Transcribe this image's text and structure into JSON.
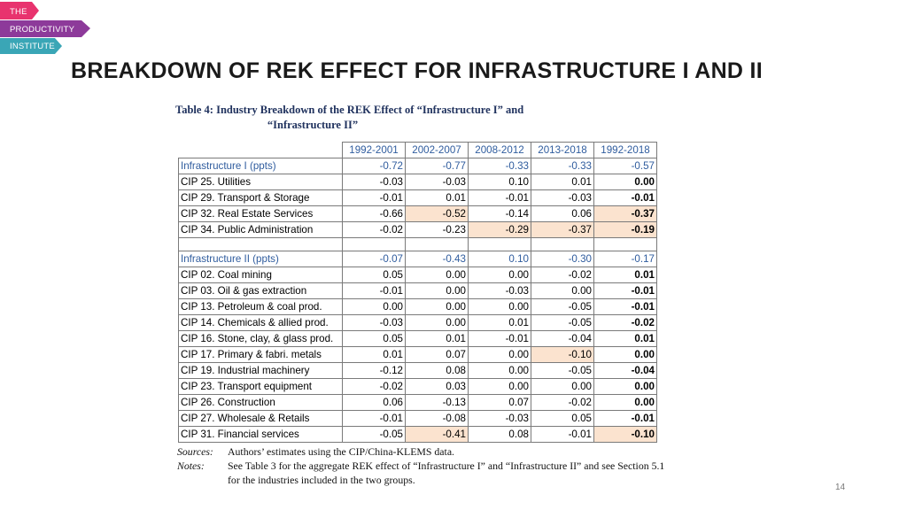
{
  "logo": {
    "line1": "THE",
    "line2": "PRODUCTIVITY",
    "line3": "INSTITUTE",
    "colors": [
      "#e8336e",
      "#8d3a9a",
      "#3aa6b6"
    ]
  },
  "slide_title": "BREAKDOWN OF REK EFFECT FOR INFRASTRUCTURE I AND II",
  "table": {
    "caption_line1": "Table 4: Industry Breakdown of the REK Effect of “Infrastructure I” and",
    "caption_line2": "“Infrastructure II”",
    "columns": [
      "1992-2001",
      "2002-2007",
      "2008-2012",
      "2013-2018",
      "1992-2018"
    ],
    "highlight_color": "#fbe3cf",
    "rows": [
      {
        "label": "Infrastructure I (ppts)",
        "values": [
          "-0.72",
          "-0.77",
          "-0.33",
          "-0.33",
          "-0.57"
        ],
        "kind": "header",
        "hl": []
      },
      {
        "label": "CIP 25. Utilities",
        "values": [
          "-0.03",
          "-0.03",
          "0.10",
          "0.01",
          "0.00"
        ],
        "kind": "row",
        "hl": []
      },
      {
        "label": "CIP 29. Transport & Storage",
        "values": [
          "-0.01",
          "0.01",
          "-0.01",
          "-0.03",
          "-0.01"
        ],
        "kind": "row",
        "hl": []
      },
      {
        "label": "CIP 32. Real Estate Services",
        "values": [
          "-0.66",
          "-0.52",
          "-0.14",
          "0.06",
          "-0.37"
        ],
        "kind": "row",
        "hl": [
          1,
          4
        ]
      },
      {
        "label": "CIP 34. Public Administration",
        "values": [
          "-0.02",
          "-0.23",
          "-0.29",
          "-0.37",
          "-0.19"
        ],
        "kind": "row",
        "hl": [
          2,
          3,
          4
        ]
      },
      {
        "label": "",
        "values": [
          "",
          "",
          "",
          "",
          ""
        ],
        "kind": "empty",
        "hl": []
      },
      {
        "label": "Infrastructure II (ppts)",
        "values": [
          "-0.07",
          "-0.43",
          "0.10",
          "-0.30",
          "-0.17"
        ],
        "kind": "header",
        "hl": []
      },
      {
        "label": "CIP 02. Coal mining",
        "values": [
          "0.05",
          "0.00",
          "0.00",
          "-0.02",
          "0.01"
        ],
        "kind": "row",
        "hl": []
      },
      {
        "label": "CIP 03. Oil & gas extraction",
        "values": [
          "-0.01",
          "0.00",
          "-0.03",
          "0.00",
          "-0.01"
        ],
        "kind": "row",
        "hl": []
      },
      {
        "label": "CIP 13. Petroleum & coal prod.",
        "values": [
          "0.00",
          "0.00",
          "0.00",
          "-0.05",
          "-0.01"
        ],
        "kind": "row",
        "hl": []
      },
      {
        "label": "CIP 14. Chemicals & allied prod.",
        "values": [
          "-0.03",
          "0.00",
          "0.01",
          "-0.05",
          "-0.02"
        ],
        "kind": "row",
        "hl": []
      },
      {
        "label": "CIP 16. Stone, clay, & glass prod.",
        "values": [
          "0.05",
          "0.01",
          "-0.01",
          "-0.04",
          "0.01"
        ],
        "kind": "row",
        "hl": []
      },
      {
        "label": "CIP 17. Primary & fabri. metals",
        "values": [
          "0.01",
          "0.07",
          "0.00",
          "-0.10",
          "0.00"
        ],
        "kind": "row",
        "hl": [
          3
        ]
      },
      {
        "label": "CIP 19. Industrial machinery",
        "values": [
          "-0.12",
          "0.08",
          "0.00",
          "-0.05",
          "-0.04"
        ],
        "kind": "row",
        "hl": []
      },
      {
        "label": "CIP 23. Transport equipment",
        "values": [
          "-0.02",
          "0.03",
          "0.00",
          "0.00",
          "0.00"
        ],
        "kind": "row",
        "hl": []
      },
      {
        "label": "CIP 26. Construction",
        "values": [
          "0.06",
          "-0.13",
          "0.07",
          "-0.02",
          "0.00"
        ],
        "kind": "row",
        "hl": []
      },
      {
        "label": "CIP 27. Wholesale & Retails",
        "values": [
          "-0.01",
          "-0.08",
          "-0.03",
          "0.05",
          "-0.01"
        ],
        "kind": "row",
        "hl": []
      },
      {
        "label": "CIP 31. Financial services",
        "values": [
          "-0.05",
          "-0.41",
          "0.08",
          "-0.01",
          "-0.10"
        ],
        "kind": "row",
        "hl": [
          1,
          4
        ]
      }
    ]
  },
  "sources": {
    "label": "Sources:",
    "text": "Authors’ estimates using the CIP/China-KLEMS data."
  },
  "notes": {
    "label": "Notes:",
    "text": "See Table 3 for the aggregate REK effect of “Infrastructure I” and “Infrastructure II” and see Section 5.1 for the industries included in the two groups."
  },
  "page_number": "14"
}
